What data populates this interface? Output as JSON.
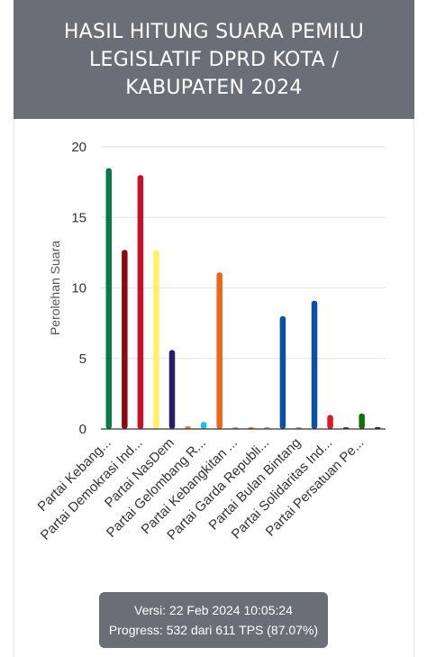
{
  "header": {
    "title": "HASIL HITUNG SUARA PEMILU LEGISLATIF DPRD KOTA / KABUPATEN 2024"
  },
  "footer": {
    "version": "Versi: 22 Feb 2024 10:05:24",
    "progress": "Progress: 532 dari 611 TPS (87.07%)"
  },
  "chart_data": {
    "type": "bar",
    "ylabel": "Perolehan Suara",
    "ylim": [
      0,
      20
    ],
    "yticks": [
      0,
      5,
      10,
      15,
      20
    ],
    "grid": true,
    "legend": "none",
    "x_tick_labels": [
      "Partai Kebang...",
      "Partai Demokrasi Ind...",
      "Partai NasDem",
      "Partai Gelombang R...",
      "Partai Kebangkitan ...",
      "Partai Garda Republi...",
      "Partai Bulan Bintang",
      "Partai Solidaritas Ind...",
      "Partai Persatuan Pe..."
    ],
    "values": [
      18.5,
      12.7,
      18,
      12.7,
      5.6,
      0.2,
      0.5,
      11.1,
      0,
      0.1,
      0,
      8,
      0,
      9.1,
      1,
      0.1,
      1.1,
      0.1
    ],
    "colors": [
      "#0b7a4b",
      "#8b0b12",
      "#c8102e",
      "#fff066",
      "#2a1f5e",
      "#f07b2e",
      "#1fbcf0",
      "#f06418",
      "#999999",
      "#e07030",
      "#999999",
      "#0d4ea6",
      "#999999",
      "#0d4ea6",
      "#d91c2a",
      "#3a3a5a",
      "#13700f",
      "#1a1a1a"
    ]
  }
}
